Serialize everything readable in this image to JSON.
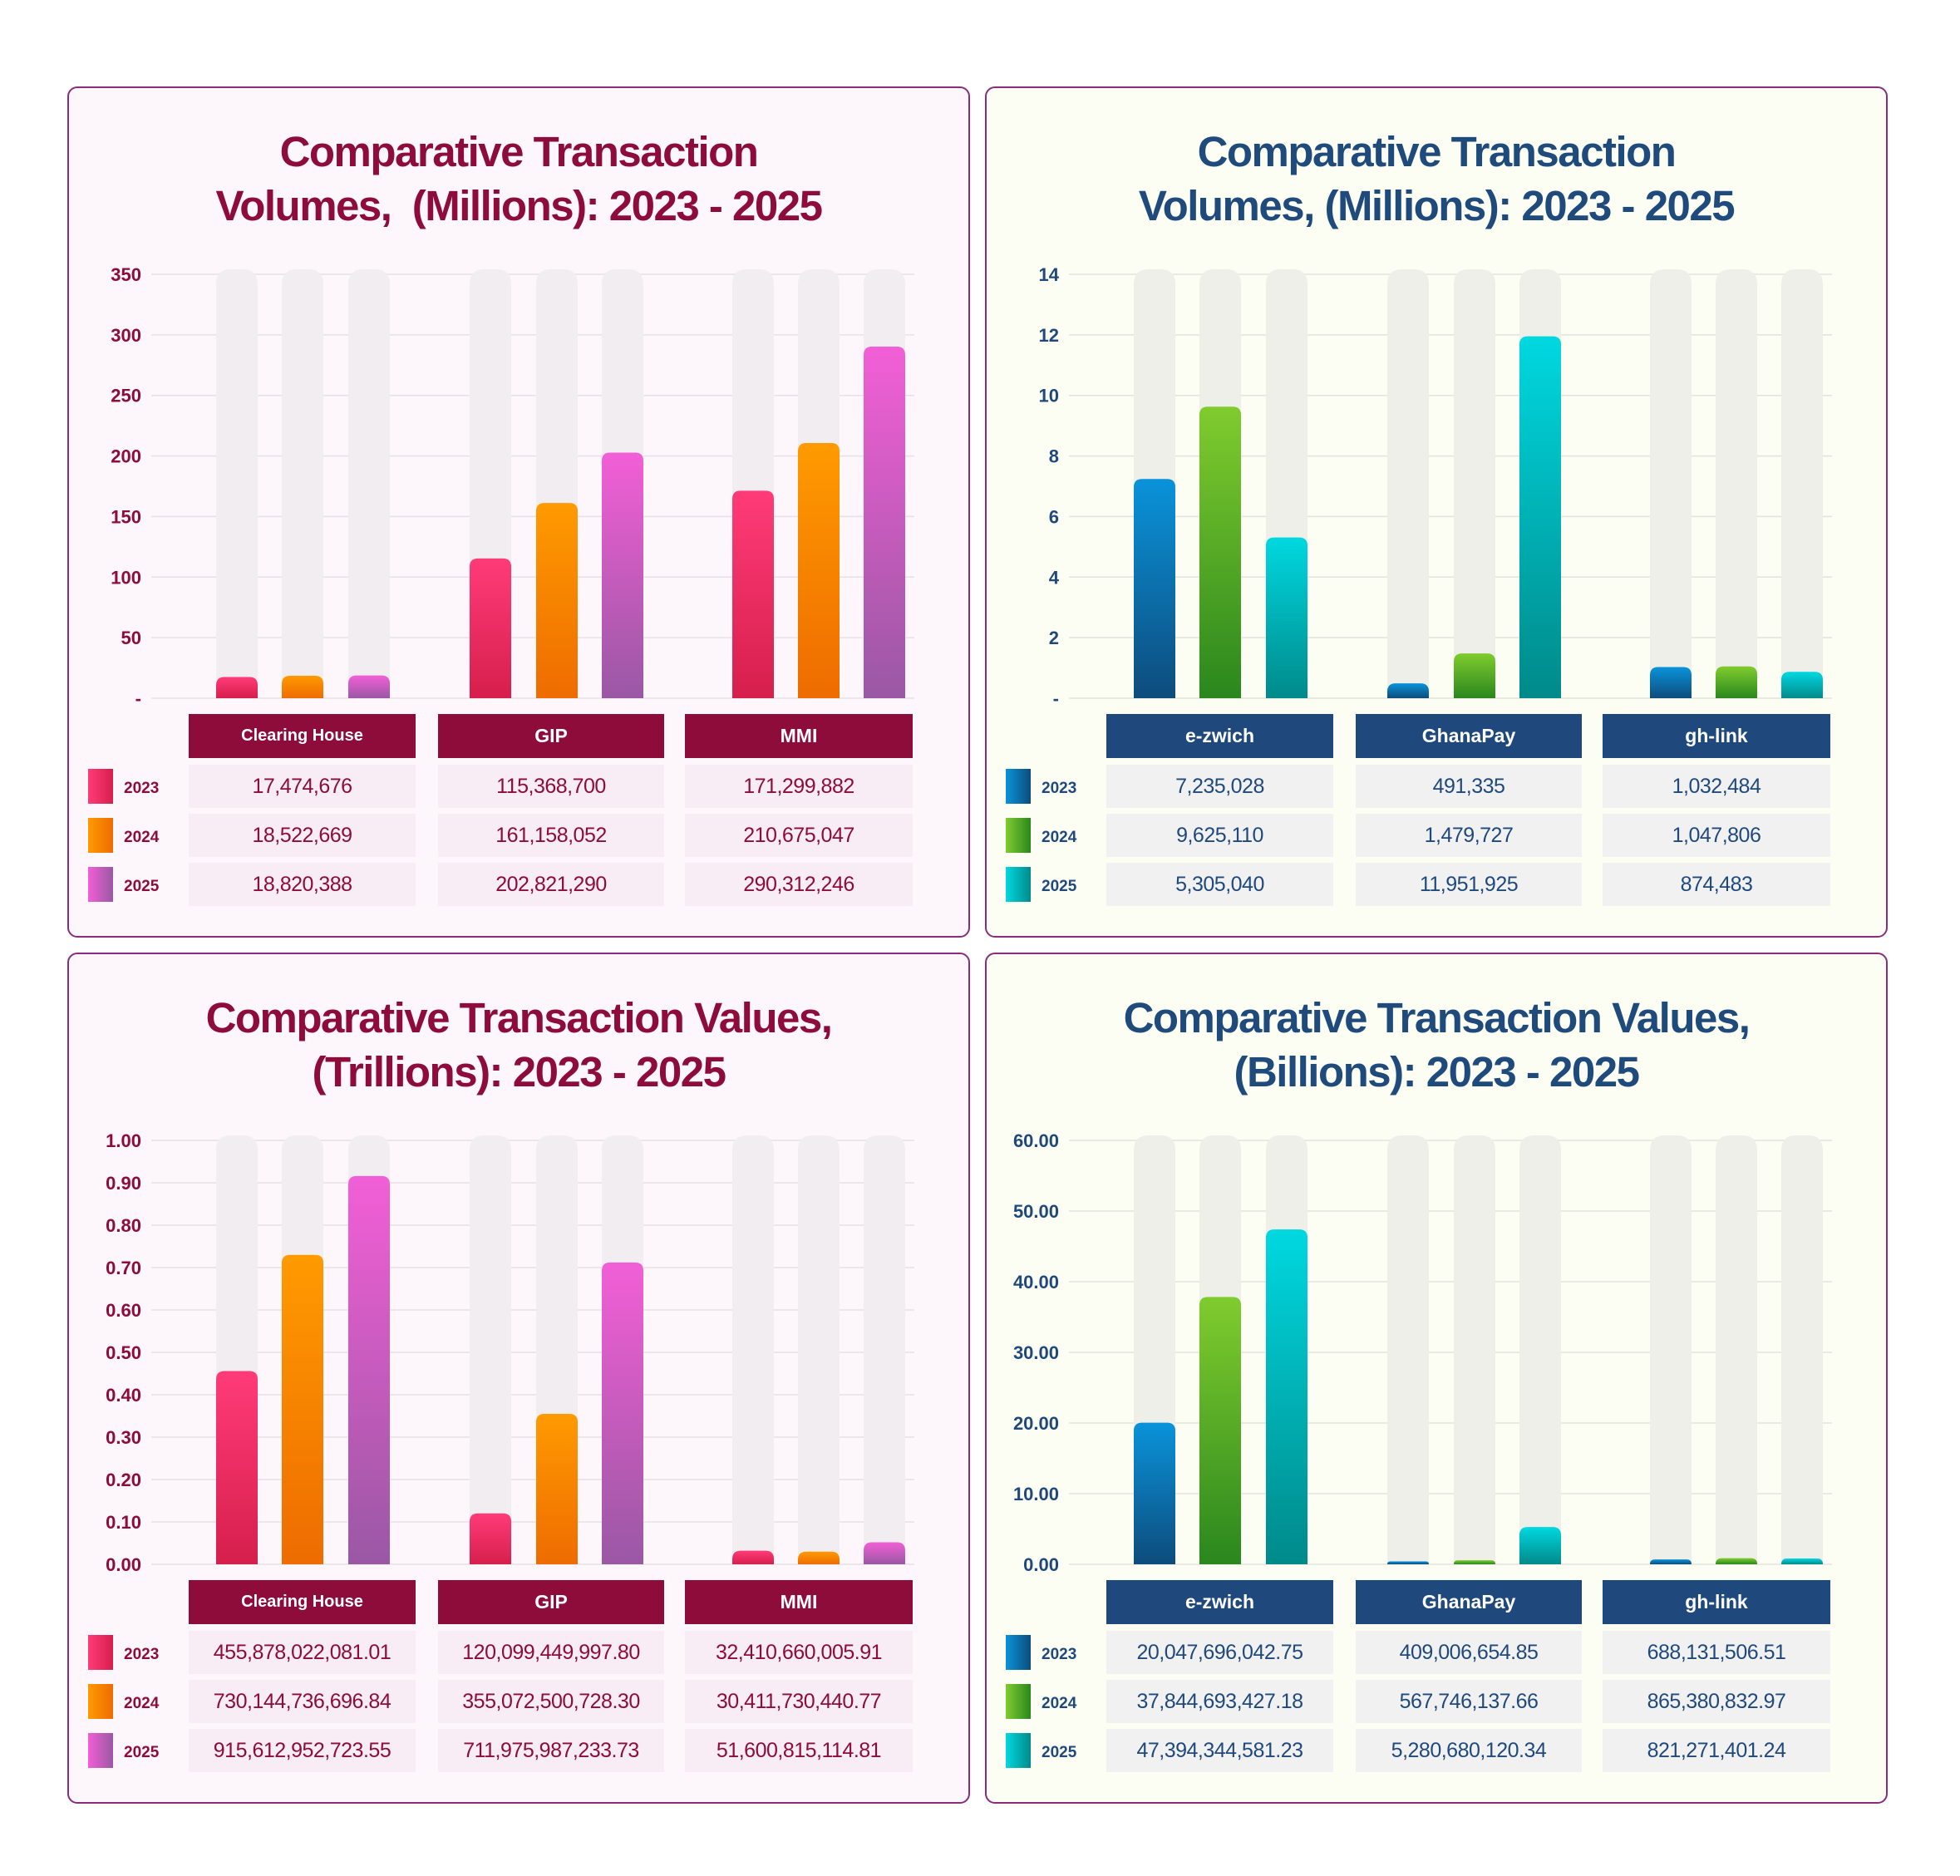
{
  "charts": [
    {
      "theme": "warm",
      "colors": {
        "title": "#8e0c3a",
        "header_bg": "#8e0c3a",
        "cell_bg": "#f8edf4",
        "text": "#8e0c3a",
        "track": "#f1edf1",
        "grid": "#e6e1e6"
      },
      "series_gradients": [
        [
          "#ff3b78",
          "#d61f4c"
        ],
        [
          "#ff9a00",
          "#ee6c00"
        ],
        [
          "#f25fd6",
          "#9a58a4"
        ]
      ],
      "chart_data": {
        "type": "bar",
        "title_lines": [
          "Comparative Transaction",
          "Volumes,  (Millions): 2023 - 2025"
        ],
        "categories": [
          "Clearing House",
          "GIP",
          "MMI"
        ],
        "series": [
          {
            "name": "2023",
            "values": [
              17.47,
              115.37,
              171.3
            ]
          },
          {
            "name": "2024",
            "values": [
              18.52,
              161.16,
              210.68
            ]
          },
          {
            "name": "2025",
            "values": [
              18.82,
              202.82,
              290.31
            ]
          }
        ],
        "ylim": [
          0,
          350
        ],
        "yticks": [
          "-",
          "50",
          "100",
          "150",
          "200",
          "250",
          "300",
          "350"
        ],
        "grid": true,
        "legend": "left of table"
      },
      "table": [
        [
          "17,474,676",
          "115,368,700",
          "171,299,882"
        ],
        [
          "18,522,669",
          "161,158,052",
          "210,675,047"
        ],
        [
          "18,820,388",
          "202,821,290",
          "290,312,246"
        ]
      ]
    },
    {
      "theme": "cool",
      "colors": {
        "title": "#1f4a7c",
        "header_bg": "#1f497d",
        "cell_bg": "#f1f1f1",
        "text": "#1f497d",
        "track": "#efefea",
        "grid": "#e3e3dd"
      },
      "series_gradients": [
        [
          "#0a93da",
          "#0d4c7c"
        ],
        [
          "#80cc2e",
          "#2a871d"
        ],
        [
          "#00d8e0",
          "#008a8a"
        ]
      ],
      "chart_data": {
        "type": "bar",
        "title_lines": [
          "Comparative Transaction",
          "Volumes, (Millions): 2023 - 2025"
        ],
        "categories": [
          "e-zwich",
          "GhanaPay",
          "gh-link"
        ],
        "series": [
          {
            "name": "2023",
            "values": [
              7.24,
              0.49,
              1.03
            ]
          },
          {
            "name": "2024",
            "values": [
              9.63,
              1.48,
              1.05
            ]
          },
          {
            "name": "2025",
            "values": [
              5.31,
              11.95,
              0.87
            ]
          }
        ],
        "ylim": [
          0,
          14
        ],
        "yticks": [
          "-",
          "2",
          "4",
          "6",
          "8",
          "10",
          "12",
          "14"
        ],
        "grid": true,
        "legend": "left of table"
      },
      "table": [
        [
          "7,235,028",
          "491,335",
          "1,032,484"
        ],
        [
          "9,625,110",
          "1,479,727",
          "1,047,806"
        ],
        [
          "5,305,040",
          "11,951,925",
          "874,483"
        ]
      ]
    },
    {
      "theme": "warm",
      "colors": {
        "title": "#8e0c3a",
        "header_bg": "#8e0c3a",
        "cell_bg": "#f8edf4",
        "text": "#8e0c3a",
        "track": "#f1edf1",
        "grid": "#e6e1e6"
      },
      "series_gradients": [
        [
          "#ff3b78",
          "#d61f4c"
        ],
        [
          "#ff9a00",
          "#ee6c00"
        ],
        [
          "#f25fd6",
          "#9a58a4"
        ]
      ],
      "chart_data": {
        "type": "bar",
        "title_lines": [
          "Comparative Transaction Values,",
          "(Trillions): 2023 - 2025"
        ],
        "categories": [
          "Clearing House",
          "GIP",
          "MMI"
        ],
        "series": [
          {
            "name": "2023",
            "values": [
              0.456,
              0.12,
              0.032
            ]
          },
          {
            "name": "2024",
            "values": [
              0.73,
              0.355,
              0.03
            ]
          },
          {
            "name": "2025",
            "values": [
              0.916,
              0.712,
              0.052
            ]
          }
        ],
        "ylim": [
          0,
          1
        ],
        "yticks": [
          "0.00",
          "0.10",
          "0.20",
          "0.30",
          "0.40",
          "0.50",
          "0.60",
          "0.70",
          "0.80",
          "0.90",
          "1.00"
        ],
        "grid": true,
        "legend": "left of table"
      },
      "table": [
        [
          "455,878,022,081.01",
          "120,099,449,997.80",
          "32,410,660,005.91"
        ],
        [
          "730,144,736,696.84",
          "355,072,500,728.30",
          "30,411,730,440.77"
        ],
        [
          "915,612,952,723.55",
          "711,975,987,233.73",
          "51,600,815,114.81"
        ]
      ]
    },
    {
      "theme": "cool",
      "colors": {
        "title": "#1f4a7c",
        "header_bg": "#1f497d",
        "cell_bg": "#f1f1f1",
        "text": "#1f497d",
        "track": "#efefea",
        "grid": "#e3e3dd"
      },
      "series_gradients": [
        [
          "#0a93da",
          "#0d4c7c"
        ],
        [
          "#80cc2e",
          "#2a871d"
        ],
        [
          "#00d8e0",
          "#008a8a"
        ]
      ],
      "chart_data": {
        "type": "bar",
        "title_lines": [
          "Comparative Transaction Values,",
          "(Billions): 2023 - 2025"
        ],
        "categories": [
          "e-zwich",
          "GhanaPay",
          "gh-link"
        ],
        "series": [
          {
            "name": "2023",
            "values": [
              20.05,
              0.41,
              0.69
            ]
          },
          {
            "name": "2024",
            "values": [
              37.84,
              0.57,
              0.87
            ]
          },
          {
            "name": "2025",
            "values": [
              47.39,
              5.28,
              0.82
            ]
          }
        ],
        "ylim": [
          0,
          60
        ],
        "yticks": [
          "0.00",
          "10.00",
          "20.00",
          "30.00",
          "40.00",
          "50.00",
          "60.00"
        ],
        "grid": true,
        "legend": "left of table"
      },
      "table": [
        [
          "20,047,696,042.75",
          "409,006,654.85",
          "688,131,506.51"
        ],
        [
          "37,844,693,427.18",
          "567,746,137.66",
          "865,380,832.97"
        ],
        [
          "47,394,344,581.23",
          "5,280,680,120.34",
          "821,271,401.24"
        ]
      ]
    }
  ]
}
